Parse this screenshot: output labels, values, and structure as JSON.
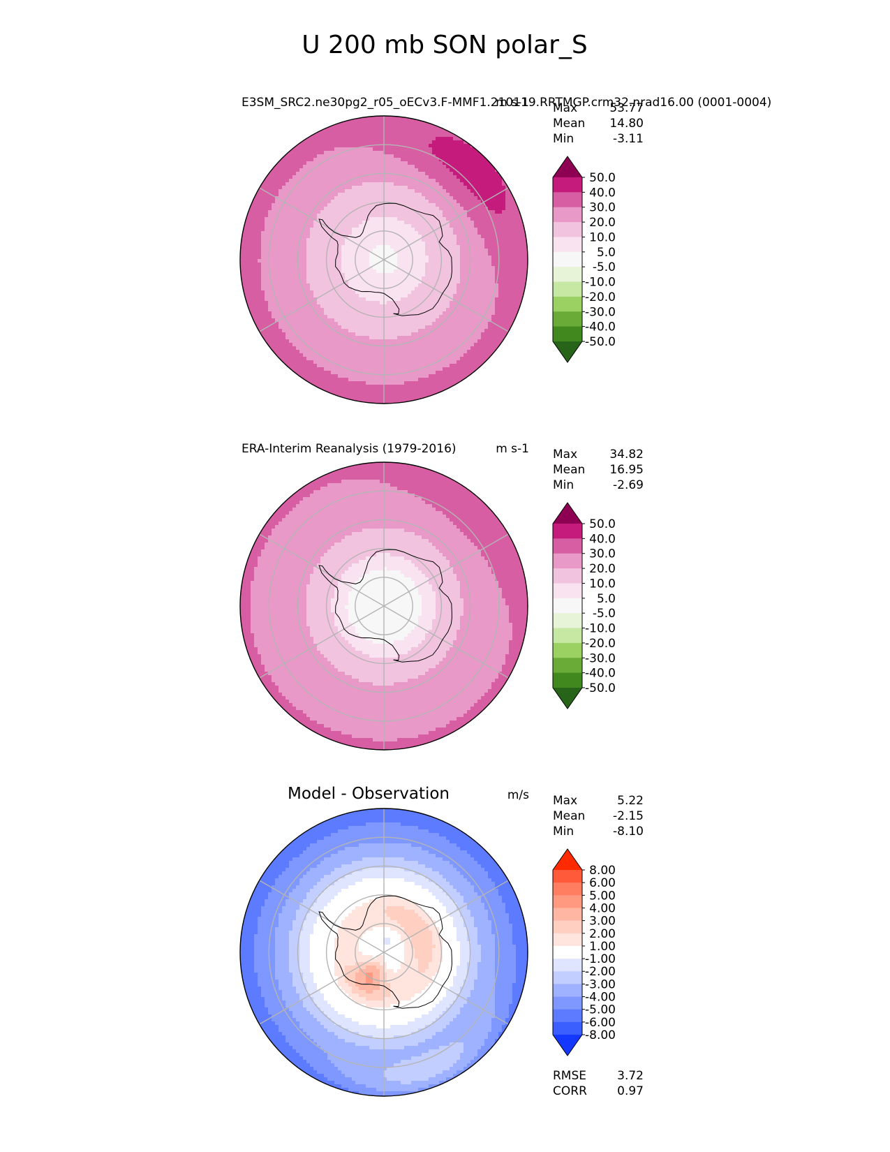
{
  "figure": {
    "title": "U 200 mb SON polar_S"
  },
  "chart_data": [
    {
      "type": "heatmap",
      "projection": "south-polar-stereographic",
      "title": "E3SM_SRC2.ne30pg2_r05_oECv3.F-MMF1.210119.RRTMGP.crm32.nrad16.00 (0001-0004)",
      "units": "m s-1",
      "stats": [
        {
          "label": "Max",
          "value": "53.77"
        },
        {
          "label": "Mean",
          "value": "14.80"
        },
        {
          "label": "Min",
          "value": "-3.11"
        }
      ],
      "colorbar": {
        "levels": [
          "50.0",
          "40.0",
          "30.0",
          "20.0",
          "10.0",
          "5.0",
          "-5.0",
          "-10.0",
          "-20.0",
          "-30.0",
          "-40.0",
          "-50.0"
        ],
        "colors": [
          "#8e0152",
          "#c51b7d",
          "#d85ea3",
          "#e899c8",
          "#f2c3df",
          "#fae3f0",
          "#f7f7f7",
          "#e7f4d8",
          "#c6e8a2",
          "#9bd063",
          "#6aab37",
          "#41881f",
          "#276419"
        ]
      },
      "field": {
        "bands": [
          {
            "lat": -90,
            "value": 4
          },
          {
            "lat": -80,
            "value": 6
          },
          {
            "lat": -70,
            "value": 14
          },
          {
            "lat": -60,
            "value": 22
          },
          {
            "lat": -50,
            "value": 28
          },
          {
            "lat": -40,
            "value": 34
          }
        ],
        "features": [
          {
            "lon": 45,
            "lat": -47,
            "value": 44,
            "spread_lon": 40,
            "spread_lat": 10
          }
        ]
      }
    },
    {
      "type": "heatmap",
      "projection": "south-polar-stereographic",
      "title": "ERA-Interim Reanalysis (1979-2016)",
      "units": "m s-1",
      "stats": [
        {
          "label": "Max",
          "value": "34.82"
        },
        {
          "label": "Mean",
          "value": "16.95"
        },
        {
          "label": "Min",
          "value": "-2.69"
        }
      ],
      "colorbar": {
        "levels": [
          "50.0",
          "40.0",
          "30.0",
          "20.0",
          "10.0",
          "5.0",
          "-5.0",
          "-10.0",
          "-20.0",
          "-30.0",
          "-40.0",
          "-50.0"
        ],
        "colors": [
          "#8e0152",
          "#c51b7d",
          "#d85ea3",
          "#e899c8",
          "#f2c3df",
          "#fae3f0",
          "#f7f7f7",
          "#e7f4d8",
          "#c6e8a2",
          "#9bd063",
          "#6aab37",
          "#41881f",
          "#276419"
        ]
      },
      "field": {
        "bands": [
          {
            "lat": -90,
            "value": 3
          },
          {
            "lat": -78,
            "value": 4
          },
          {
            "lat": -70,
            "value": 12
          },
          {
            "lat": -60,
            "value": 23
          },
          {
            "lat": -50,
            "value": 28
          },
          {
            "lat": -40,
            "value": 31
          }
        ],
        "features": [
          {
            "lon": 45,
            "lat": -44,
            "value": 36,
            "spread_lon": 35,
            "spread_lat": 8
          }
        ]
      }
    },
    {
      "type": "heatmap",
      "projection": "south-polar-stereographic",
      "title": "Model - Observation",
      "units": "m/s",
      "stats": [
        {
          "label": "Max",
          "value": "5.22"
        },
        {
          "label": "Mean",
          "value": "-2.15"
        },
        {
          "label": "Min",
          "value": "-8.10"
        }
      ],
      "metrics": [
        {
          "label": "RMSE",
          "value": "3.72"
        },
        {
          "label": "CORR",
          "value": "0.97"
        }
      ],
      "colorbar": {
        "levels": [
          "8.00",
          "6.00",
          "5.00",
          "4.00",
          "3.00",
          "2.00",
          "1.00",
          "-1.00",
          "-2.00",
          "-3.00",
          "-4.00",
          "-5.00",
          "-6.00",
          "-8.00"
        ],
        "colors": [
          "#ff2a00",
          "#ff5a3a",
          "#ff7d60",
          "#ff9a80",
          "#ffb6a2",
          "#ffcfc2",
          "#ffe5de",
          "#ffffff",
          "#dfe5ff",
          "#c2ceff",
          "#9eb2ff",
          "#7f98ff",
          "#5c7bff",
          "#3a5eff",
          "#1438ff"
        ]
      },
      "field": {
        "bands": [
          {
            "lat": -90,
            "value": 0
          },
          {
            "lat": -75,
            "value": 1.5
          },
          {
            "lat": -68,
            "value": 0
          },
          {
            "lat": -62,
            "value": -1.5
          },
          {
            "lat": -55,
            "value": -3.5
          },
          {
            "lat": -45,
            "value": -5
          },
          {
            "lat": -40,
            "value": -6
          }
        ],
        "features": [
          {
            "lon": -150,
            "lat": -80,
            "value": 4.2,
            "spread_lon": 35,
            "spread_lat": 7
          },
          {
            "lon": 60,
            "lat": -76,
            "value": 2.6,
            "spread_lon": 70,
            "spread_lat": 6
          },
          {
            "lon": 160,
            "lat": -47,
            "value": -2.5,
            "spread_lon": 40,
            "spread_lat": 8
          },
          {
            "lon": 20,
            "lat": -86,
            "value": -1.2,
            "spread_lon": 60,
            "spread_lat": 3
          }
        ]
      }
    }
  ]
}
